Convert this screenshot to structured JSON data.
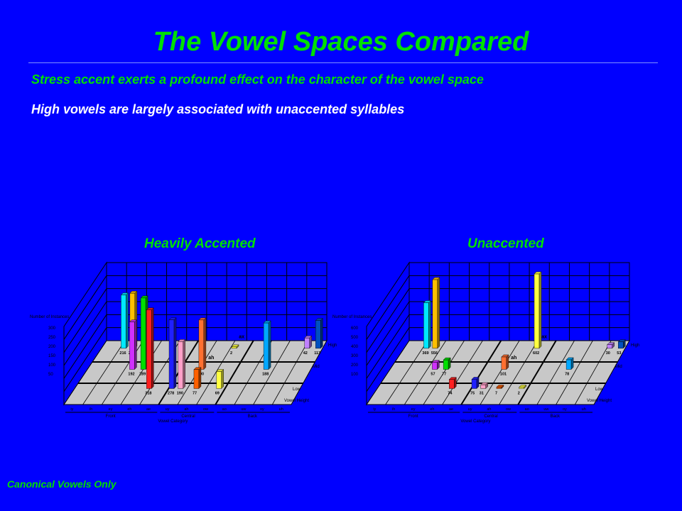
{
  "slide": {
    "title": "The Vowel Spaces Compared",
    "bullet1": "Stress accent exerts a profound effect on the character of the vowel space",
    "bullet2": "High vowels are largely associated with unaccented syllables",
    "footer": "Canonical Vowels Only"
  },
  "colors": {
    "background": "#0000ff",
    "title": "#00e000",
    "bullet2": "#ffffff",
    "floor": "#c8c8c8"
  },
  "chart_data": [
    {
      "type": "bar3d",
      "title": "Heavily Accented",
      "ylabel": "Number of Instances",
      "yticks": [
        "300",
        "250",
        "200",
        "150",
        "100",
        "50"
      ],
      "ylim": [
        0,
        300
      ],
      "height_labels": [
        "High",
        "Mid",
        "Low",
        "Vowel Height"
      ],
      "category_codes": [
        "iy",
        "ih",
        "ey",
        "eh",
        "ae",
        "uy",
        "ah",
        "ow",
        "ao",
        "uw",
        "oy",
        "uh"
      ],
      "category_groups": [
        "Front",
        "Central",
        "Back"
      ],
      "xlabel": "Vowel Category",
      "annotations": [
        "ax",
        "ah"
      ],
      "bars": [
        {
          "value": 216,
          "height": "High",
          "color": "#00e8ff"
        },
        {
          "value": 223,
          "height": "High",
          "color": "#ffc000"
        },
        {
          "value": 192,
          "height": "Mid",
          "color": "#d030ff"
        },
        {
          "value": 289,
          "height": "Mid",
          "color": "#00e000"
        },
        {
          "value": 318,
          "height": "Low",
          "color": "#ff2020"
        },
        {
          "value": 278,
          "height": "Low",
          "color": "#2020ff"
        },
        {
          "value": 190,
          "height": "Low",
          "color": "#ffa0c8"
        },
        {
          "value": 200,
          "height": "Mid",
          "color": "#ff7030"
        },
        {
          "value": 77,
          "height": "Low",
          "color": "#ff6000"
        },
        {
          "value": 2,
          "height": "High",
          "color": "#ffff40"
        },
        {
          "value": 69,
          "height": "Low",
          "color": "#ffff40"
        },
        {
          "value": 188,
          "height": "Mid",
          "color": "#00a8ff"
        },
        {
          "value": 42,
          "height": "High",
          "color": "#c080ff"
        },
        {
          "value": 113,
          "height": "High",
          "color": "#0050c0"
        }
      ]
    },
    {
      "type": "bar3d",
      "title": "Unaccented",
      "ylabel": "Number of Instances",
      "yticks": [
        "600",
        "500",
        "400",
        "300",
        "200",
        "100"
      ],
      "ylim": [
        0,
        600
      ],
      "height_labels": [
        "High",
        "Mid",
        "Low",
        "Vowel Height"
      ],
      "category_codes": [
        "iy",
        "ih",
        "ey",
        "eh",
        "ae",
        "uy",
        "ah",
        "ow",
        "ao",
        "uw",
        "oy",
        "uh"
      ],
      "category_groups": [
        "Front",
        "Central",
        "Back"
      ],
      "xlabel": "Vowel Category",
      "annotations": [
        "ax",
        "ah"
      ],
      "bars": [
        {
          "value": 369,
          "height": "High",
          "color": "#00e8ff"
        },
        {
          "value": 556,
          "height": "High",
          "color": "#ffc000"
        },
        {
          "value": 57,
          "height": "Mid",
          "color": "#d030ff"
        },
        {
          "value": 77,
          "height": "Mid",
          "color": "#00e000"
        },
        {
          "value": 74,
          "height": "Low",
          "color": "#ff2020"
        },
        {
          "value": 75,
          "height": "Low",
          "color": "#2020ff"
        },
        {
          "value": 31,
          "height": "Low",
          "color": "#ffa0c8"
        },
        {
          "value": 101,
          "height": "Mid",
          "color": "#ff7030"
        },
        {
          "value": 7,
          "height": "Low",
          "color": "#ff6000"
        },
        {
          "value": 602,
          "height": "High",
          "color": "#ffff40"
        },
        {
          "value": 2,
          "height": "Low",
          "color": "#ffff40"
        },
        {
          "value": 78,
          "height": "Mid",
          "color": "#00a8ff"
        },
        {
          "value": 30,
          "height": "High",
          "color": "#c080ff"
        },
        {
          "value": 53,
          "height": "High",
          "color": "#0050c0"
        }
      ]
    }
  ]
}
